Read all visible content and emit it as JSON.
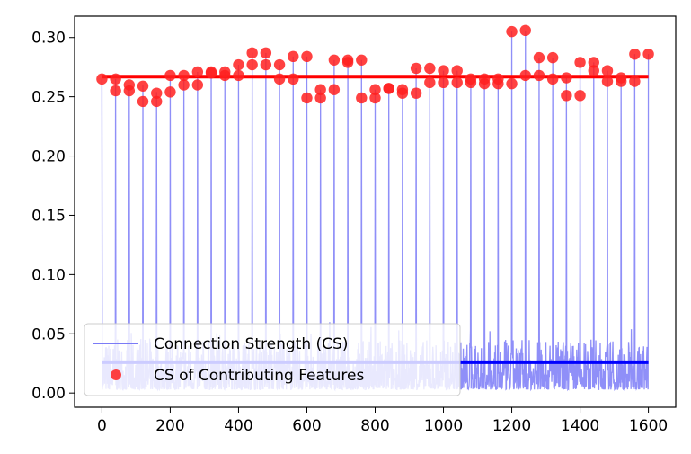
{
  "chart_data": {
    "type": "line",
    "title": "",
    "xlabel": "",
    "ylabel": "",
    "xlim": [
      -80,
      1680
    ],
    "ylim": [
      -0.012,
      0.318
    ],
    "x_ticks": [
      0,
      200,
      400,
      600,
      800,
      1000,
      1200,
      1400,
      1600
    ],
    "y_ticks": [
      0.0,
      0.05,
      0.1,
      0.15,
      0.2,
      0.25,
      0.3
    ],
    "x_tick_labels": [
      "0",
      "200",
      "400",
      "600",
      "800",
      "1000",
      "1200",
      "1400",
      "1600"
    ],
    "y_tick_labels": [
      "0.00",
      "0.05",
      "0.10",
      "0.15",
      "0.20",
      "0.25",
      "0.30"
    ],
    "grid": false,
    "legend_position": "lower-left",
    "colors": {
      "connection_strength": "#7b7bf7",
      "mean_connection_strength": "#0000ff",
      "contributing_features": "#ff2020",
      "mean_contributing": "#ff0000"
    },
    "series": [
      {
        "name": "Connection Strength (CS)",
        "style": "line",
        "spikes": {
          "x": [
            0,
            40,
            80,
            120,
            160,
            200,
            240,
            280,
            320,
            360,
            400,
            440,
            480,
            520,
            560,
            600,
            640,
            680,
            720,
            760,
            800,
            840,
            880,
            920,
            960,
            1000,
            1040,
            1080,
            1120,
            1160,
            1200,
            1240,
            1280,
            1320,
            1360,
            1400,
            1440,
            1480,
            1520,
            1560,
            1600
          ],
          "y": [
            0.265,
            0.265,
            0.26,
            0.26,
            0.254,
            0.268,
            0.268,
            0.271,
            0.271,
            0.271,
            0.277,
            0.287,
            0.287,
            0.277,
            0.284,
            0.284,
            0.256,
            0.281,
            0.281,
            0.281,
            0.256,
            0.257,
            0.256,
            0.274,
            0.274,
            0.272,
            0.272,
            0.265,
            0.265,
            0.265,
            0.305,
            0.306,
            0.283,
            0.283,
            0.266,
            0.279,
            0.279,
            0.272,
            0.266,
            0.286,
            0.286
          ]
        },
        "noise_range": [
          0.0,
          0.05
        ],
        "mean": 0.026
      },
      {
        "name": "CS of Contributing Features",
        "style": "scatter",
        "x": [
          0,
          40,
          40,
          80,
          80,
          120,
          120,
          160,
          160,
          200,
          200,
          240,
          240,
          280,
          280,
          320,
          320,
          360,
          360,
          400,
          400,
          440,
          440,
          480,
          480,
          520,
          520,
          560,
          560,
          600,
          600,
          640,
          640,
          680,
          680,
          720,
          720,
          760,
          760,
          800,
          800,
          840,
          840,
          880,
          880,
          920,
          920,
          960,
          960,
          1000,
          1000,
          1040,
          1040,
          1080,
          1080,
          1120,
          1120,
          1160,
          1160,
          1200,
          1200,
          1240,
          1240,
          1280,
          1280,
          1320,
          1320,
          1360,
          1360,
          1400,
          1400,
          1440,
          1440,
          1480,
          1480,
          1520,
          1520,
          1560,
          1560,
          1600
        ],
        "y": [
          0.265,
          0.265,
          0.255,
          0.26,
          0.255,
          0.259,
          0.246,
          0.253,
          0.246,
          0.268,
          0.254,
          0.268,
          0.26,
          0.271,
          0.26,
          0.271,
          0.27,
          0.271,
          0.268,
          0.277,
          0.268,
          0.287,
          0.277,
          0.287,
          0.277,
          0.277,
          0.265,
          0.284,
          0.265,
          0.284,
          0.249,
          0.256,
          0.249,
          0.281,
          0.256,
          0.281,
          0.279,
          0.281,
          0.249,
          0.256,
          0.249,
          0.257,
          0.257,
          0.256,
          0.253,
          0.274,
          0.253,
          0.274,
          0.262,
          0.272,
          0.262,
          0.272,
          0.262,
          0.265,
          0.262,
          0.265,
          0.261,
          0.265,
          0.261,
          0.305,
          0.261,
          0.306,
          0.268,
          0.283,
          0.268,
          0.283,
          0.265,
          0.266,
          0.251,
          0.279,
          0.251,
          0.279,
          0.272,
          0.272,
          0.263,
          0.266,
          0.263,
          0.286,
          0.263,
          0.286
        ],
        "mean": 0.267
      }
    ]
  }
}
